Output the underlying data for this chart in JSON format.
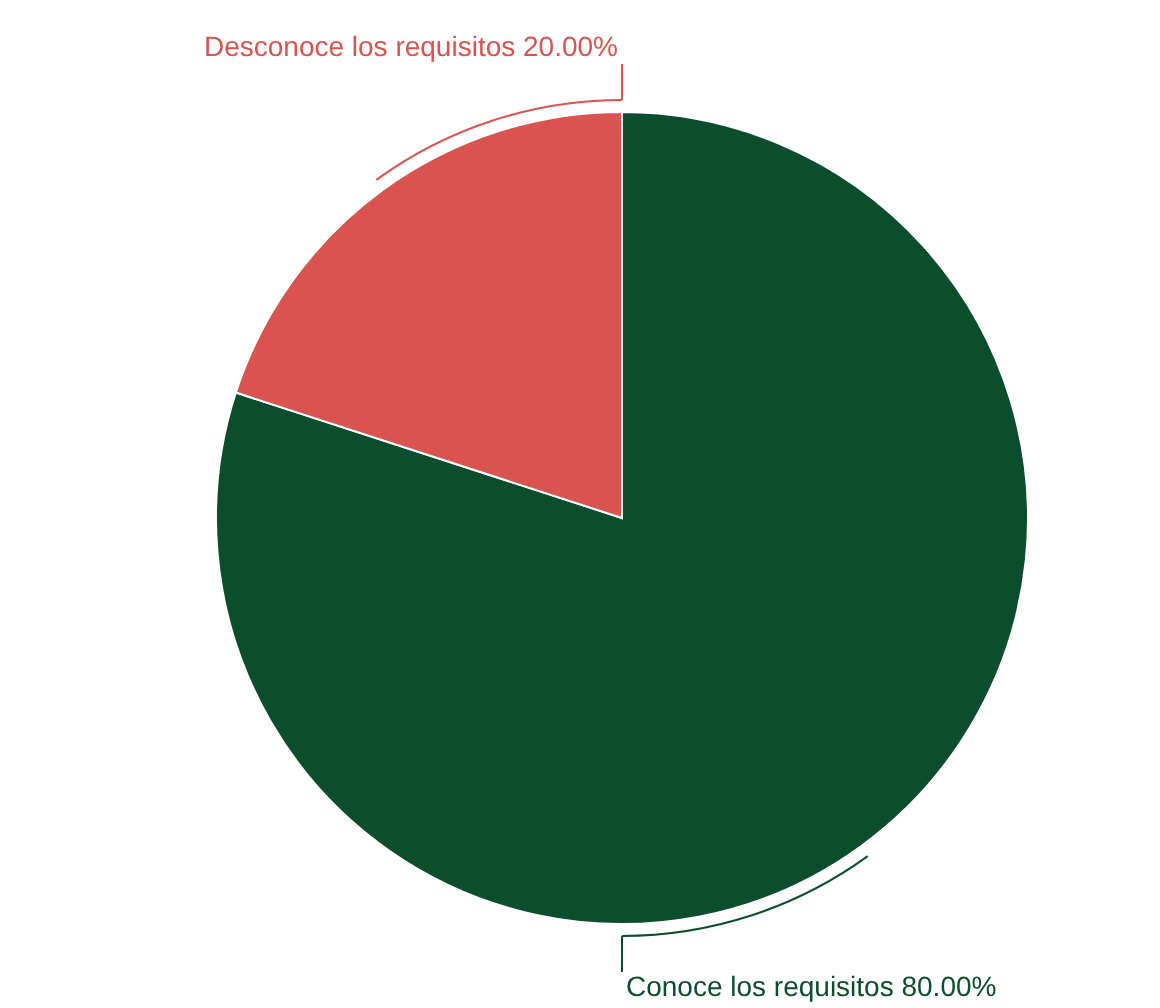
{
  "chart_data": {
    "type": "pie",
    "categories": [
      "Conoce los requisitos",
      "Desconoce los requisitos"
    ],
    "values": [
      80,
      20
    ],
    "colors": [
      "#0b4d2c",
      "#d9534f"
    ],
    "value_labels": [
      "80.00%",
      "20.00%"
    ]
  }
}
